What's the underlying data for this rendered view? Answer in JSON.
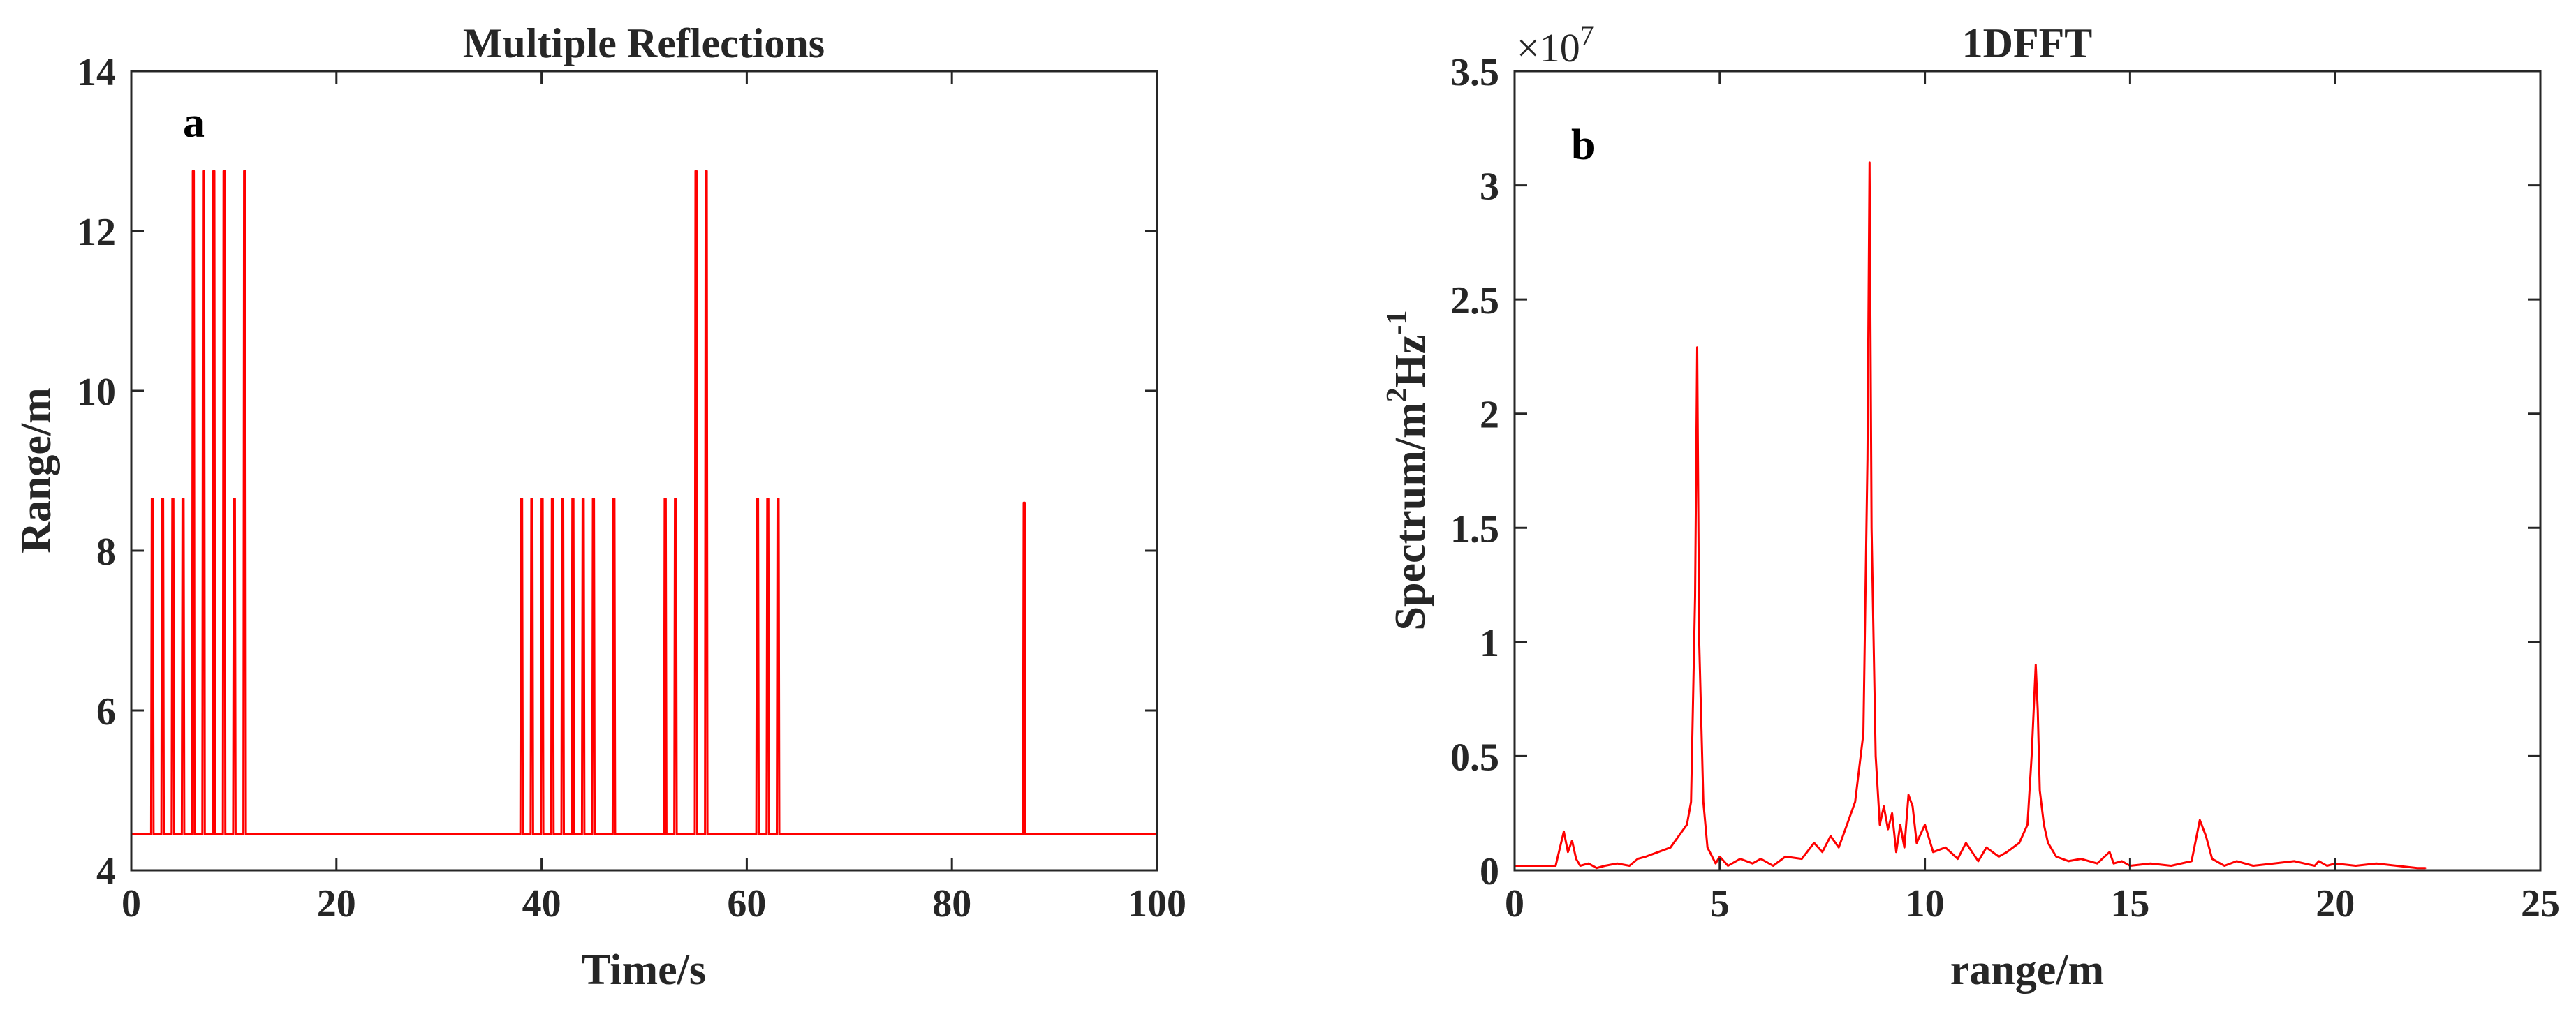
{
  "chart_data": [
    {
      "type": "line",
      "panel_label": "a",
      "title": "Multiple Reflections",
      "xlabel": "Time/s",
      "ylabel": "Range/m",
      "xlim": [
        0,
        100
      ],
      "ylim": [
        4,
        14
      ],
      "xticks": [
        0,
        20,
        40,
        60,
        80,
        100
      ],
      "xtick_labels": [
        "0",
        "20",
        "40",
        "60",
        "80",
        "100"
      ],
      "yticks": [
        4,
        6,
        8,
        10,
        12,
        14
      ],
      "ytick_labels": [
        "4",
        "6",
        "8",
        "10",
        "12",
        "14"
      ],
      "grid": false,
      "series": [
        {
          "name": "Range",
          "color": "#ff0000",
          "baseline": 4.45,
          "spikes": [
            {
              "x": 2.0,
              "y": 8.65
            },
            {
              "x": 3.0,
              "y": 8.65
            },
            {
              "x": 4.0,
              "y": 8.65
            },
            {
              "x": 5.0,
              "y": 8.65
            },
            {
              "x": 6.0,
              "y": 12.75
            },
            {
              "x": 7.0,
              "y": 12.75
            },
            {
              "x": 8.0,
              "y": 12.75
            },
            {
              "x": 9.0,
              "y": 12.75
            },
            {
              "x": 10.0,
              "y": 8.65
            },
            {
              "x": 11.0,
              "y": 12.75
            },
            {
              "x": 38.0,
              "y": 8.65
            },
            {
              "x": 39.0,
              "y": 8.65
            },
            {
              "x": 40.0,
              "y": 8.65
            },
            {
              "x": 41.0,
              "y": 8.65
            },
            {
              "x": 42.0,
              "y": 8.65
            },
            {
              "x": 43.0,
              "y": 8.65
            },
            {
              "x": 44.0,
              "y": 8.65
            },
            {
              "x": 45.0,
              "y": 8.65
            },
            {
              "x": 47.0,
              "y": 8.65
            },
            {
              "x": 52.0,
              "y": 8.65
            },
            {
              "x": 53.0,
              "y": 8.65
            },
            {
              "x": 55.0,
              "y": 12.75
            },
            {
              "x": 56.0,
              "y": 12.75
            },
            {
              "x": 61.0,
              "y": 8.65
            },
            {
              "x": 62.0,
              "y": 8.65
            },
            {
              "x": 63.0,
              "y": 8.65
            },
            {
              "x": 87.0,
              "y": 8.6
            }
          ]
        }
      ]
    },
    {
      "type": "line",
      "panel_label": "b",
      "title": "1DFFT",
      "xlabel": "range/m",
      "ylabel_main": "Spectrum/m",
      "ylabel_sup1": "2",
      "ylabel_mid": "Hz",
      "ylabel_sup2": "-1",
      "multiplier_base": "×10",
      "multiplier_exp": "7",
      "xlim": [
        0,
        25
      ],
      "ylim": [
        0,
        3.5
      ],
      "xticks": [
        0,
        5,
        10,
        15,
        20,
        25
      ],
      "xtick_labels": [
        "0",
        "5",
        "10",
        "15",
        "20",
        "25"
      ],
      "yticks": [
        0,
        0.5,
        1,
        1.5,
        2,
        2.5,
        3,
        3.5
      ],
      "ytick_labels": [
        "0",
        "0.5",
        "1",
        "1.5",
        "2",
        "2.5",
        "3",
        "3.5"
      ],
      "grid": false,
      "series": [
        {
          "name": "Spectrum",
          "color": "#ff0000",
          "x": [
            0,
            1.0,
            1.2,
            1.3,
            1.4,
            1.5,
            1.6,
            1.8,
            2.0,
            2.2,
            2.5,
            2.8,
            3.0,
            3.2,
            3.5,
            3.8,
            4.0,
            4.2,
            4.3,
            4.4,
            4.45,
            4.5,
            4.6,
            4.7,
            4.9,
            5.0,
            5.2,
            5.5,
            5.8,
            6.0,
            6.3,
            6.6,
            7.0,
            7.3,
            7.5,
            7.7,
            7.9,
            8.1,
            8.3,
            8.5,
            8.6,
            8.65,
            8.7,
            8.8,
            8.9,
            9.0,
            9.1,
            9.2,
            9.3,
            9.4,
            9.5,
            9.6,
            9.7,
            9.8,
            10.0,
            10.2,
            10.5,
            10.8,
            11.0,
            11.3,
            11.5,
            11.8,
            12.0,
            12.3,
            12.5,
            12.6,
            12.7,
            12.75,
            12.8,
            12.9,
            13.0,
            13.2,
            13.5,
            13.8,
            14.2,
            14.5,
            14.6,
            14.8,
            15.0,
            15.5,
            16.0,
            16.5,
            16.7,
            16.85,
            17.0,
            17.3,
            17.6,
            18.0,
            18.5,
            19.0,
            19.5,
            19.6,
            19.8,
            20.0,
            20.5,
            21.0,
            21.5,
            22.0,
            22.2
          ],
          "values": [
            0.02,
            0.02,
            0.17,
            0.08,
            0.13,
            0.05,
            0.02,
            0.03,
            0.01,
            0.02,
            0.03,
            0.02,
            0.05,
            0.06,
            0.08,
            0.1,
            0.15,
            0.2,
            0.3,
            1.2,
            2.29,
            1.0,
            0.3,
            0.1,
            0.03,
            0.06,
            0.02,
            0.05,
            0.03,
            0.05,
            0.02,
            0.06,
            0.05,
            0.12,
            0.08,
            0.15,
            0.1,
            0.2,
            0.3,
            0.6,
            1.8,
            3.1,
            1.5,
            0.5,
            0.2,
            0.28,
            0.18,
            0.25,
            0.08,
            0.2,
            0.1,
            0.33,
            0.28,
            0.12,
            0.2,
            0.08,
            0.1,
            0.05,
            0.12,
            0.04,
            0.1,
            0.06,
            0.08,
            0.12,
            0.2,
            0.5,
            0.9,
            0.7,
            0.35,
            0.2,
            0.12,
            0.06,
            0.04,
            0.05,
            0.03,
            0.08,
            0.03,
            0.04,
            0.02,
            0.03,
            0.02,
            0.04,
            0.22,
            0.15,
            0.05,
            0.02,
            0.04,
            0.02,
            0.03,
            0.04,
            0.02,
            0.04,
            0.02,
            0.03,
            0.02,
            0.03,
            0.02,
            0.01,
            0.01
          ]
        }
      ]
    }
  ]
}
